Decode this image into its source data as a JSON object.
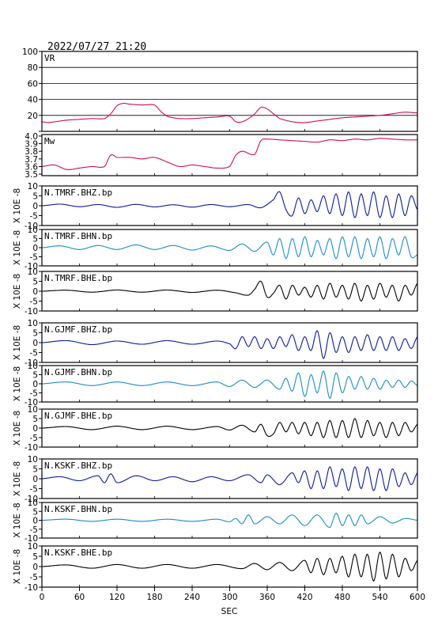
{
  "header": {
    "title": "2022/07/27 21:20"
  },
  "colors": {
    "magenta": "#d0104c",
    "navy": "#0a1a9e",
    "cyan": "#1a8cc8",
    "black": "#000000"
  },
  "chart_data": [
    {
      "type": "line",
      "name": "VR",
      "label": "VR",
      "color": "#d0104c",
      "ylim": [
        0,
        100
      ],
      "yticks": [
        0,
        20,
        40,
        60,
        80,
        100
      ],
      "ytick_labels": [
        "",
        "20",
        "40",
        "60",
        "80",
        "100"
      ],
      "grid": true,
      "x": [
        0,
        10,
        20,
        40,
        60,
        80,
        100,
        110,
        120,
        130,
        140,
        160,
        180,
        190,
        200,
        210,
        220,
        240,
        260,
        280,
        300,
        310,
        320,
        330,
        340,
        350,
        360,
        370,
        380,
        400,
        420,
        440,
        460,
        480,
        500,
        520,
        540,
        560,
        580,
        600
      ],
      "y": [
        12,
        11,
        12,
        14,
        15,
        16,
        16,
        22,
        32,
        35,
        34,
        33,
        33,
        25,
        19,
        17,
        16,
        16,
        17,
        18,
        19,
        12,
        12,
        16,
        22,
        30,
        28,
        22,
        16,
        12,
        11,
        13,
        15,
        17,
        18,
        19,
        20,
        22,
        24,
        23
      ]
    },
    {
      "type": "line",
      "name": "Mw",
      "label": "Mw",
      "color": "#d0104c",
      "ylim": [
        3.48,
        4.02
      ],
      "yticks": [
        3.5,
        3.6,
        3.7,
        3.8,
        3.9,
        4.0
      ],
      "ytick_labels": [
        "3.5",
        "3.6",
        "3.7",
        "3.8",
        "3.9",
        "4.0"
      ],
      "grid": false,
      "x": [
        0,
        20,
        40,
        60,
        80,
        100,
        110,
        120,
        140,
        160,
        180,
        200,
        220,
        240,
        260,
        280,
        300,
        310,
        320,
        340,
        350,
        360,
        380,
        400,
        420,
        440,
        460,
        480,
        500,
        520,
        540,
        560,
        580,
        600
      ],
      "y": [
        3.6,
        3.62,
        3.56,
        3.58,
        3.6,
        3.6,
        3.75,
        3.72,
        3.72,
        3.7,
        3.72,
        3.66,
        3.6,
        3.62,
        3.6,
        3.58,
        3.6,
        3.75,
        3.8,
        3.76,
        3.94,
        3.96,
        3.95,
        3.94,
        3.93,
        3.92,
        3.95,
        3.94,
        3.96,
        3.95,
        3.97,
        3.96,
        3.95,
        3.95
      ]
    },
    {
      "type": "line",
      "name": "N.TMRF.BHZ.bp",
      "label": "N.TMRF.BHZ.bp",
      "color": "#0a1a9e",
      "ylim": [
        -10,
        10
      ],
      "yticks": [
        -10,
        -5,
        0,
        5,
        10
      ],
      "ytick_labels": [
        "-10",
        "-5",
        "0",
        "5",
        "10"
      ],
      "y_axis_label": "X 10E -8",
      "x": [
        0,
        30,
        60,
        90,
        120,
        150,
        180,
        210,
        240,
        270,
        300,
        330,
        350,
        370,
        380,
        390,
        400,
        410,
        420,
        430,
        440,
        450,
        460,
        470,
        480,
        490,
        500,
        510,
        520,
        530,
        540,
        550,
        560,
        570,
        580,
        590,
        600
      ],
      "y": [
        0,
        0.8,
        -0.5,
        0.6,
        -0.8,
        0.7,
        -0.6,
        0.5,
        -0.7,
        0.6,
        -0.5,
        0.6,
        -1,
        3,
        7,
        -2,
        -5,
        4,
        -4,
        3,
        -3,
        5,
        -4,
        6,
        -5,
        7,
        -6,
        6,
        -5,
        7,
        -6,
        5,
        -6,
        6,
        -5,
        5,
        -2
      ]
    },
    {
      "type": "line",
      "name": "N.TMRF.BHN.bp",
      "label": "N.TMRF.BHN.bp",
      "color": "#1a8cc8",
      "ylim": [
        -10,
        10
      ],
      "yticks": [
        -10,
        -5,
        0,
        5,
        10
      ],
      "ytick_labels": [
        "-10",
        "-5",
        "0",
        "5",
        "10"
      ],
      "y_axis_label": "X 10E -8",
      "x": [
        0,
        30,
        60,
        90,
        120,
        150,
        180,
        210,
        240,
        270,
        300,
        320,
        340,
        360,
        370,
        380,
        390,
        400,
        410,
        420,
        430,
        440,
        450,
        460,
        470,
        480,
        490,
        500,
        510,
        520,
        530,
        540,
        550,
        560,
        570,
        580,
        590,
        600
      ],
      "y": [
        0,
        1,
        -1,
        1.2,
        -1,
        1.5,
        -1,
        1.2,
        -1.3,
        1,
        -1.5,
        2,
        -2,
        3,
        -4,
        5,
        -6,
        5,
        -5,
        6,
        -5,
        4,
        -4,
        5,
        -6,
        6,
        -5,
        6,
        -6,
        5,
        -5,
        6,
        -6,
        5,
        -4,
        6,
        -5,
        -4
      ]
    },
    {
      "type": "line",
      "name": "N.TMRF.BHE.bp",
      "label": "N.TMRF.BHE.bp",
      "color": "#000000",
      "ylim": [
        -10,
        10
      ],
      "yticks": [
        -10,
        -5,
        0,
        5,
        10
      ],
      "ytick_labels": [
        "-10",
        "-5",
        "0",
        "5",
        "10"
      ],
      "y_axis_label": "X 10E -8",
      "x": [
        0,
        40,
        80,
        120,
        160,
        200,
        240,
        280,
        310,
        330,
        340,
        350,
        360,
        370,
        380,
        390,
        400,
        410,
        420,
        430,
        440,
        450,
        460,
        470,
        480,
        490,
        500,
        510,
        520,
        530,
        540,
        550,
        560,
        570,
        580,
        590,
        600
      ],
      "y": [
        0,
        0.5,
        -0.5,
        0.6,
        -0.5,
        0.6,
        -0.6,
        0.5,
        -0.8,
        -2,
        1,
        5,
        -3,
        -1,
        3,
        -4,
        3,
        -2,
        2,
        -3,
        3,
        -4,
        4,
        -3,
        3,
        -4,
        4,
        -5,
        3,
        -4,
        4,
        -3,
        3,
        -5,
        3,
        -2,
        4
      ]
    },
    {
      "type": "line",
      "name": "N.GJMF.BHZ.bp",
      "label": "N.GJMF.BHZ.bp",
      "color": "#0a1a9e",
      "ylim": [
        -10,
        10
      ],
      "yticks": [
        -10,
        -5,
        0,
        5,
        10
      ],
      "ytick_labels": [
        "-10",
        "-5",
        "0",
        "5",
        "10"
      ],
      "y_axis_label": "X 10E -8",
      "x": [
        0,
        40,
        80,
        120,
        160,
        200,
        240,
        280,
        300,
        310,
        320,
        330,
        340,
        350,
        360,
        370,
        380,
        390,
        400,
        410,
        420,
        430,
        440,
        450,
        460,
        470,
        480,
        490,
        500,
        510,
        520,
        530,
        540,
        550,
        560,
        570,
        580,
        590,
        600
      ],
      "y": [
        0,
        1,
        -1,
        0.8,
        -0.8,
        1,
        -0.8,
        0.8,
        -0.6,
        -3,
        3,
        -2,
        3,
        -3,
        2,
        -3,
        3,
        -2,
        4,
        -4,
        3,
        -4,
        6,
        -8,
        5,
        -5,
        3,
        -5,
        3,
        -4,
        4,
        -4,
        3,
        -4,
        3,
        -4,
        2,
        -3,
        3
      ]
    },
    {
      "type": "line",
      "name": "N.GJMF.BHN.bp",
      "label": "N.GJMF.BHN.bp",
      "color": "#1a8cc8",
      "ylim": [
        -10,
        10
      ],
      "yticks": [
        -10,
        -5,
        0,
        5,
        10
      ],
      "ytick_labels": [
        "-10",
        "-5",
        "0",
        "5",
        "10"
      ],
      "y_axis_label": "X 10E -8",
      "x": [
        0,
        40,
        80,
        120,
        160,
        200,
        240,
        280,
        300,
        320,
        340,
        360,
        380,
        390,
        400,
        410,
        420,
        430,
        440,
        450,
        460,
        470,
        480,
        490,
        500,
        510,
        520,
        530,
        540,
        550,
        560,
        570,
        580,
        590,
        600
      ],
      "y": [
        0,
        1,
        -1,
        1,
        -1,
        1,
        -1,
        1,
        -1.5,
        2,
        -2,
        2,
        -3,
        3,
        -4,
        6,
        -7,
        5,
        -5,
        7,
        -8,
        6,
        -5,
        4,
        -3,
        4,
        -3,
        3,
        -3,
        2,
        -2,
        2,
        -2,
        1.5,
        -1
      ]
    },
    {
      "type": "line",
      "name": "N.GJMF.BHE.bp",
      "label": "N.GJMF.BHE.bp",
      "color": "#000000",
      "ylim": [
        -10,
        10
      ],
      "yticks": [
        -10,
        -5,
        0,
        5,
        10
      ],
      "ytick_labels": [
        "-10",
        "-5",
        "0",
        "5",
        "10"
      ],
      "y_axis_label": "X 10E -8",
      "x": [
        0,
        40,
        80,
        120,
        160,
        200,
        240,
        280,
        300,
        320,
        340,
        350,
        360,
        370,
        380,
        390,
        400,
        410,
        420,
        430,
        440,
        450,
        460,
        470,
        480,
        490,
        500,
        510,
        520,
        530,
        540,
        550,
        560,
        570,
        580,
        590,
        600
      ],
      "y": [
        0,
        0.8,
        -0.8,
        1,
        -0.8,
        1,
        -0.8,
        0.8,
        -1,
        1.5,
        -2,
        2,
        -4,
        -3,
        3,
        -2,
        3,
        -3,
        3,
        -4,
        3,
        -5,
        4,
        -5,
        4,
        -5,
        5,
        -5,
        4,
        -4,
        3,
        -5,
        3,
        -4,
        3,
        -2,
        2
      ]
    },
    {
      "type": "line",
      "name": "N.KSKF.BHZ.bp",
      "label": "N.KSKF.BHZ.bp",
      "color": "#0a1a9e",
      "ylim": [
        -10,
        10
      ],
      "yticks": [
        -10,
        -5,
        0,
        5,
        10
      ],
      "ytick_labels": [
        "-10",
        "-5",
        "0",
        "5",
        "10"
      ],
      "y_axis_label": "X 10E -8",
      "x": [
        0,
        30,
        60,
        90,
        100,
        110,
        120,
        150,
        180,
        210,
        240,
        270,
        300,
        330,
        350,
        360,
        380,
        400,
        410,
        420,
        430,
        440,
        450,
        460,
        470,
        480,
        490,
        500,
        510,
        520,
        530,
        540,
        550,
        560,
        570,
        580,
        590,
        600
      ],
      "y": [
        0,
        1,
        -1,
        1.5,
        -2,
        2.5,
        -2,
        1.5,
        -1,
        1,
        -1.5,
        1,
        -1,
        2,
        -2,
        2,
        -3,
        3,
        -2,
        4,
        -5,
        4,
        -5,
        6,
        -4,
        5,
        -6,
        6,
        -5,
        6,
        -6,
        5,
        -6,
        5,
        -4,
        3,
        -3,
        3
      ]
    },
    {
      "type": "line",
      "name": "N.KSKF.BHN.bp",
      "label": "N.KSKF.BHN.bp",
      "color": "#1a8cc8",
      "ylim": [
        -10,
        10
      ],
      "yticks": [
        -10,
        -5,
        0,
        5,
        10
      ],
      "ytick_labels": [
        "-10",
        "-5",
        "0",
        "5",
        "10"
      ],
      "y_axis_label": "X 10E -8",
      "x": [
        0,
        40,
        80,
        120,
        160,
        200,
        240,
        280,
        300,
        310,
        320,
        330,
        340,
        360,
        380,
        400,
        420,
        440,
        460,
        470,
        480,
        490,
        500,
        510,
        520,
        540,
        560,
        580,
        600
      ],
      "y": [
        0,
        0.6,
        -0.6,
        0.6,
        -0.6,
        0.6,
        -0.6,
        0.6,
        -0.8,
        1,
        -2,
        3,
        -2,
        2,
        -2,
        3,
        -3,
        3,
        -4,
        4,
        -3,
        3,
        -3,
        3,
        -2,
        2,
        -1.5,
        1,
        0
      ]
    },
    {
      "type": "line",
      "name": "N.KSKF.BHE.bp",
      "label": "N.KSKF.BHE.bp",
      "color": "#000000",
      "ylim": [
        -10,
        10
      ],
      "yticks": [
        -10,
        -5,
        0,
        5,
        10
      ],
      "ytick_labels": [
        "-10",
        "-5",
        "0",
        "5",
        "10"
      ],
      "y_axis_label": "X 10E -8",
      "x": [
        0,
        40,
        80,
        120,
        160,
        200,
        240,
        280,
        320,
        340,
        360,
        380,
        400,
        420,
        430,
        440,
        450,
        460,
        470,
        480,
        490,
        500,
        510,
        520,
        530,
        540,
        550,
        560,
        570,
        580,
        590,
        600
      ],
      "y": [
        0,
        0.8,
        -0.8,
        1,
        -0.8,
        1,
        -0.8,
        1,
        -1,
        1.5,
        -1.5,
        2,
        -2,
        3,
        -3,
        4,
        -4,
        4,
        -3,
        5,
        -5,
        6,
        -5,
        6,
        -7,
        7,
        -6,
        6,
        -5,
        4,
        -2,
        3
      ]
    }
  ],
  "x_axis": {
    "label": "SEC",
    "ticks": [
      0,
      60,
      120,
      180,
      240,
      300,
      360,
      420,
      480,
      540,
      600
    ],
    "xlim": [
      0,
      600
    ]
  }
}
